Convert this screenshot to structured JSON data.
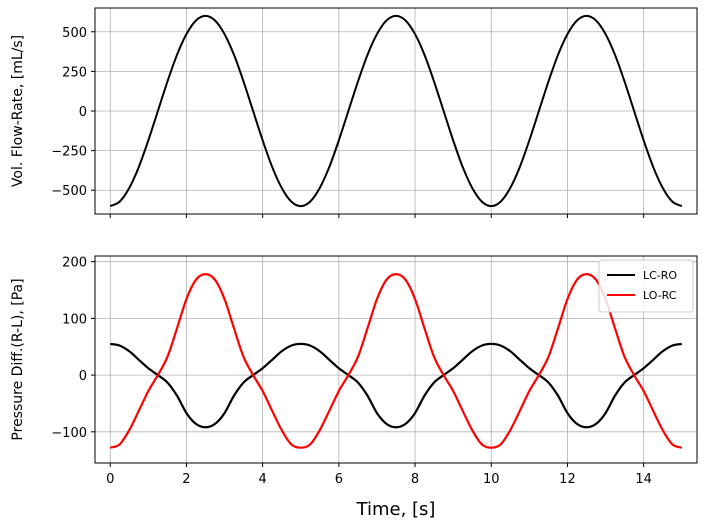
{
  "chart_data": [
    {
      "type": "line",
      "title": "",
      "xlabel": "",
      "ylabel": "Vol. Flow-Rate, [mL/s]",
      "xlim": [
        -0.4,
        15.4
      ],
      "ylim": [
        -650,
        650
      ],
      "xticks": [
        0,
        2,
        4,
        6,
        8,
        10,
        12,
        14
      ],
      "yticks": [
        -500,
        -250,
        0,
        250,
        500
      ],
      "ytick_labels": [
        "−500",
        "−250",
        "0",
        "250",
        "500"
      ],
      "grid": true,
      "legend": null,
      "series": [
        {
          "color": "#000000",
          "x": [
            0.0,
            0.25,
            0.5,
            0.75,
            1.0,
            1.25,
            1.5,
            1.75,
            2.0,
            2.25,
            2.5,
            2.75,
            3.0,
            3.25,
            3.5,
            3.75,
            4.0,
            4.25,
            4.5,
            4.75,
            5.0,
            5.25,
            5.5,
            5.75,
            6.0,
            6.25,
            6.5,
            6.75,
            7.0,
            7.25,
            7.5,
            7.75,
            8.0,
            8.25,
            8.5,
            8.75,
            9.0,
            9.25,
            9.5,
            9.75,
            10.0,
            10.25,
            10.5,
            10.75,
            11.0,
            11.25,
            11.5,
            11.75,
            12.0,
            12.25,
            12.5,
            12.75,
            13.0,
            13.25,
            13.5,
            13.75,
            14.0,
            14.25,
            14.5,
            14.75,
            15.0
          ],
          "y": [
            -600,
            -571,
            -485,
            -353,
            -185,
            0,
            185,
            353,
            485,
            571,
            600,
            571,
            485,
            353,
            185,
            0,
            -185,
            -353,
            -485,
            -571,
            -600,
            -571,
            -485,
            -353,
            -185,
            0,
            185,
            353,
            485,
            571,
            600,
            571,
            485,
            353,
            185,
            0,
            -185,
            -353,
            -485,
            -571,
            -600,
            -571,
            -485,
            -353,
            -185,
            0,
            185,
            353,
            485,
            571,
            600,
            571,
            485,
            353,
            185,
            0,
            -185,
            -353,
            -485,
            -571,
            -600
          ]
        }
      ]
    },
    {
      "type": "line",
      "title": "",
      "xlabel": "Time, [s]",
      "ylabel": "Pressure Diff.(R-L), [Pa]",
      "xlim": [
        -0.4,
        15.4
      ],
      "ylim": [
        -155,
        210
      ],
      "xticks": [
        0,
        2,
        4,
        6,
        8,
        10,
        12,
        14
      ],
      "yticks": [
        -100,
        0,
        100,
        200
      ],
      "ytick_labels": [
        "−100",
        "0",
        "100",
        "200"
      ],
      "grid": true,
      "legend": "top-right",
      "series": [
        {
          "name": "LC-RO",
          "color": "#000000",
          "x": [
            0.0,
            0.25,
            0.5,
            0.75,
            1.0,
            1.25,
            1.5,
            1.75,
            2.0,
            2.25,
            2.5,
            2.75,
            3.0,
            3.25,
            3.5,
            3.75,
            4.0,
            4.25,
            4.5,
            4.75,
            5.0,
            5.25,
            5.5,
            5.75,
            6.0,
            6.25,
            6.5,
            6.75,
            7.0,
            7.25,
            7.5,
            7.75,
            8.0,
            8.25,
            8.5,
            8.75,
            9.0,
            9.25,
            9.5,
            9.75,
            10.0,
            10.25,
            10.5,
            10.75,
            11.0,
            11.25,
            11.5,
            11.75,
            12.0,
            12.25,
            12.5,
            12.75,
            13.0,
            13.25,
            13.5,
            13.75,
            14.0,
            14.25,
            14.5,
            14.75,
            15.0
          ],
          "y": [
            55,
            52,
            42,
            27,
            12,
            0,
            -13,
            -36,
            -67,
            -86,
            -92,
            -86,
            -67,
            -36,
            -13,
            0,
            12,
            27,
            42,
            52,
            55,
            52,
            42,
            27,
            12,
            0,
            -13,
            -36,
            -67,
            -86,
            -92,
            -86,
            -67,
            -36,
            -13,
            0,
            12,
            27,
            42,
            52,
            55,
            52,
            42,
            27,
            12,
            0,
            -13,
            -36,
            -67,
            -86,
            -92,
            -86,
            -67,
            -36,
            -13,
            0,
            12,
            27,
            42,
            52,
            55
          ]
        },
        {
          "name": "LO-RC",
          "color": "#ff0000",
          "x": [
            0.0,
            0.25,
            0.5,
            0.75,
            1.0,
            1.25,
            1.5,
            1.75,
            2.0,
            2.25,
            2.5,
            2.75,
            3.0,
            3.25,
            3.5,
            3.75,
            4.0,
            4.25,
            4.5,
            4.75,
            5.0,
            5.25,
            5.5,
            5.75,
            6.0,
            6.25,
            6.5,
            6.75,
            7.0,
            7.25,
            7.5,
            7.75,
            8.0,
            8.25,
            8.5,
            8.75,
            9.0,
            9.25,
            9.5,
            9.75,
            10.0,
            10.25,
            10.5,
            10.75,
            11.0,
            11.25,
            11.5,
            11.75,
            12.0,
            12.25,
            12.5,
            12.75,
            13.0,
            13.25,
            13.5,
            13.75,
            14.0,
            14.25,
            14.5,
            14.75,
            15.0
          ],
          "y": [
            -128,
            -122,
            -97,
            -63,
            -28,
            0,
            32,
            82,
            134,
            168,
            178,
            168,
            134,
            82,
            32,
            0,
            -28,
            -63,
            -97,
            -122,
            -128,
            -122,
            -97,
            -63,
            -28,
            0,
            32,
            82,
            134,
            168,
            178,
            168,
            134,
            82,
            32,
            0,
            -28,
            -63,
            -97,
            -122,
            -128,
            -122,
            -97,
            -63,
            -28,
            0,
            32,
            82,
            134,
            168,
            178,
            168,
            134,
            82,
            32,
            0,
            -28,
            -63,
            -97,
            -122,
            -128
          ]
        }
      ]
    }
  ]
}
